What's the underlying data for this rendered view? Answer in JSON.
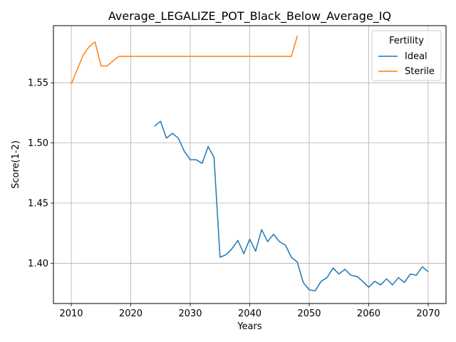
{
  "chart_data": {
    "type": "line",
    "title": "Average_LEGALIZE_POT_Black_Below_Average_IQ",
    "xlabel": "Years",
    "ylabel": "Score(1-2)",
    "xlim": [
      2007,
      2073
    ],
    "ylim": [
      1.3665,
      1.5975
    ],
    "xticks": [
      2010,
      2020,
      2030,
      2040,
      2050,
      2060,
      2070
    ],
    "yticks": [
      1.4,
      1.45,
      1.5,
      1.55
    ],
    "ytick_labels": [
      "1.40",
      "1.45",
      "1.50",
      "1.55"
    ],
    "grid": true,
    "legend": {
      "title": "Fertility",
      "placement": "top-right"
    },
    "series": [
      {
        "name": "Ideal",
        "color": "#1f77b4",
        "x": [
          2024,
          2025,
          2026,
          2027,
          2028,
          2029,
          2030,
          2031,
          2032,
          2033,
          2034,
          2035,
          2036,
          2037,
          2038,
          2039,
          2040,
          2041,
          2042,
          2043,
          2044,
          2045,
          2046,
          2047,
          2048,
          2049,
          2050,
          2051,
          2052,
          2053,
          2054,
          2055,
          2056,
          2057,
          2058,
          2059,
          2060,
          2061,
          2062,
          2063,
          2064,
          2065,
          2066,
          2067,
          2068,
          2069,
          2070
        ],
        "y": [
          1.514,
          1.518,
          1.504,
          1.508,
          1.504,
          1.493,
          1.486,
          1.486,
          1.483,
          1.497,
          1.488,
          1.405,
          1.407,
          1.412,
          1.419,
          1.408,
          1.42,
          1.41,
          1.428,
          1.418,
          1.424,
          1.418,
          1.415,
          1.405,
          1.401,
          1.384,
          1.378,
          1.377,
          1.385,
          1.388,
          1.396,
          1.391,
          1.395,
          1.39,
          1.389,
          1.385,
          1.38,
          1.385,
          1.382,
          1.387,
          1.382,
          1.388,
          1.384,
          1.391,
          1.39,
          1.397,
          1.393
        ]
      },
      {
        "name": "Sterile",
        "color": "#ff7f0e",
        "x": [
          2010,
          2011,
          2012,
          2013,
          2014,
          2015,
          2016,
          2017,
          2018,
          2019,
          2020,
          2021,
          2022,
          2023,
          2024,
          2025,
          2026,
          2027,
          2028,
          2029,
          2030,
          2031,
          2032,
          2033,
          2034,
          2035,
          2036,
          2037,
          2038,
          2039,
          2040,
          2041,
          2042,
          2043,
          2044,
          2045,
          2046,
          2047,
          2048
        ],
        "y": [
          1.549,
          1.561,
          1.573,
          1.58,
          1.584,
          1.564,
          1.564,
          1.568,
          1.572,
          1.572,
          1.572,
          1.572,
          1.572,
          1.572,
          1.572,
          1.572,
          1.572,
          1.572,
          1.572,
          1.572,
          1.572,
          1.572,
          1.572,
          1.572,
          1.572,
          1.572,
          1.572,
          1.572,
          1.572,
          1.572,
          1.572,
          1.572,
          1.572,
          1.572,
          1.572,
          1.572,
          1.572,
          1.572,
          1.589
        ]
      }
    ]
  }
}
